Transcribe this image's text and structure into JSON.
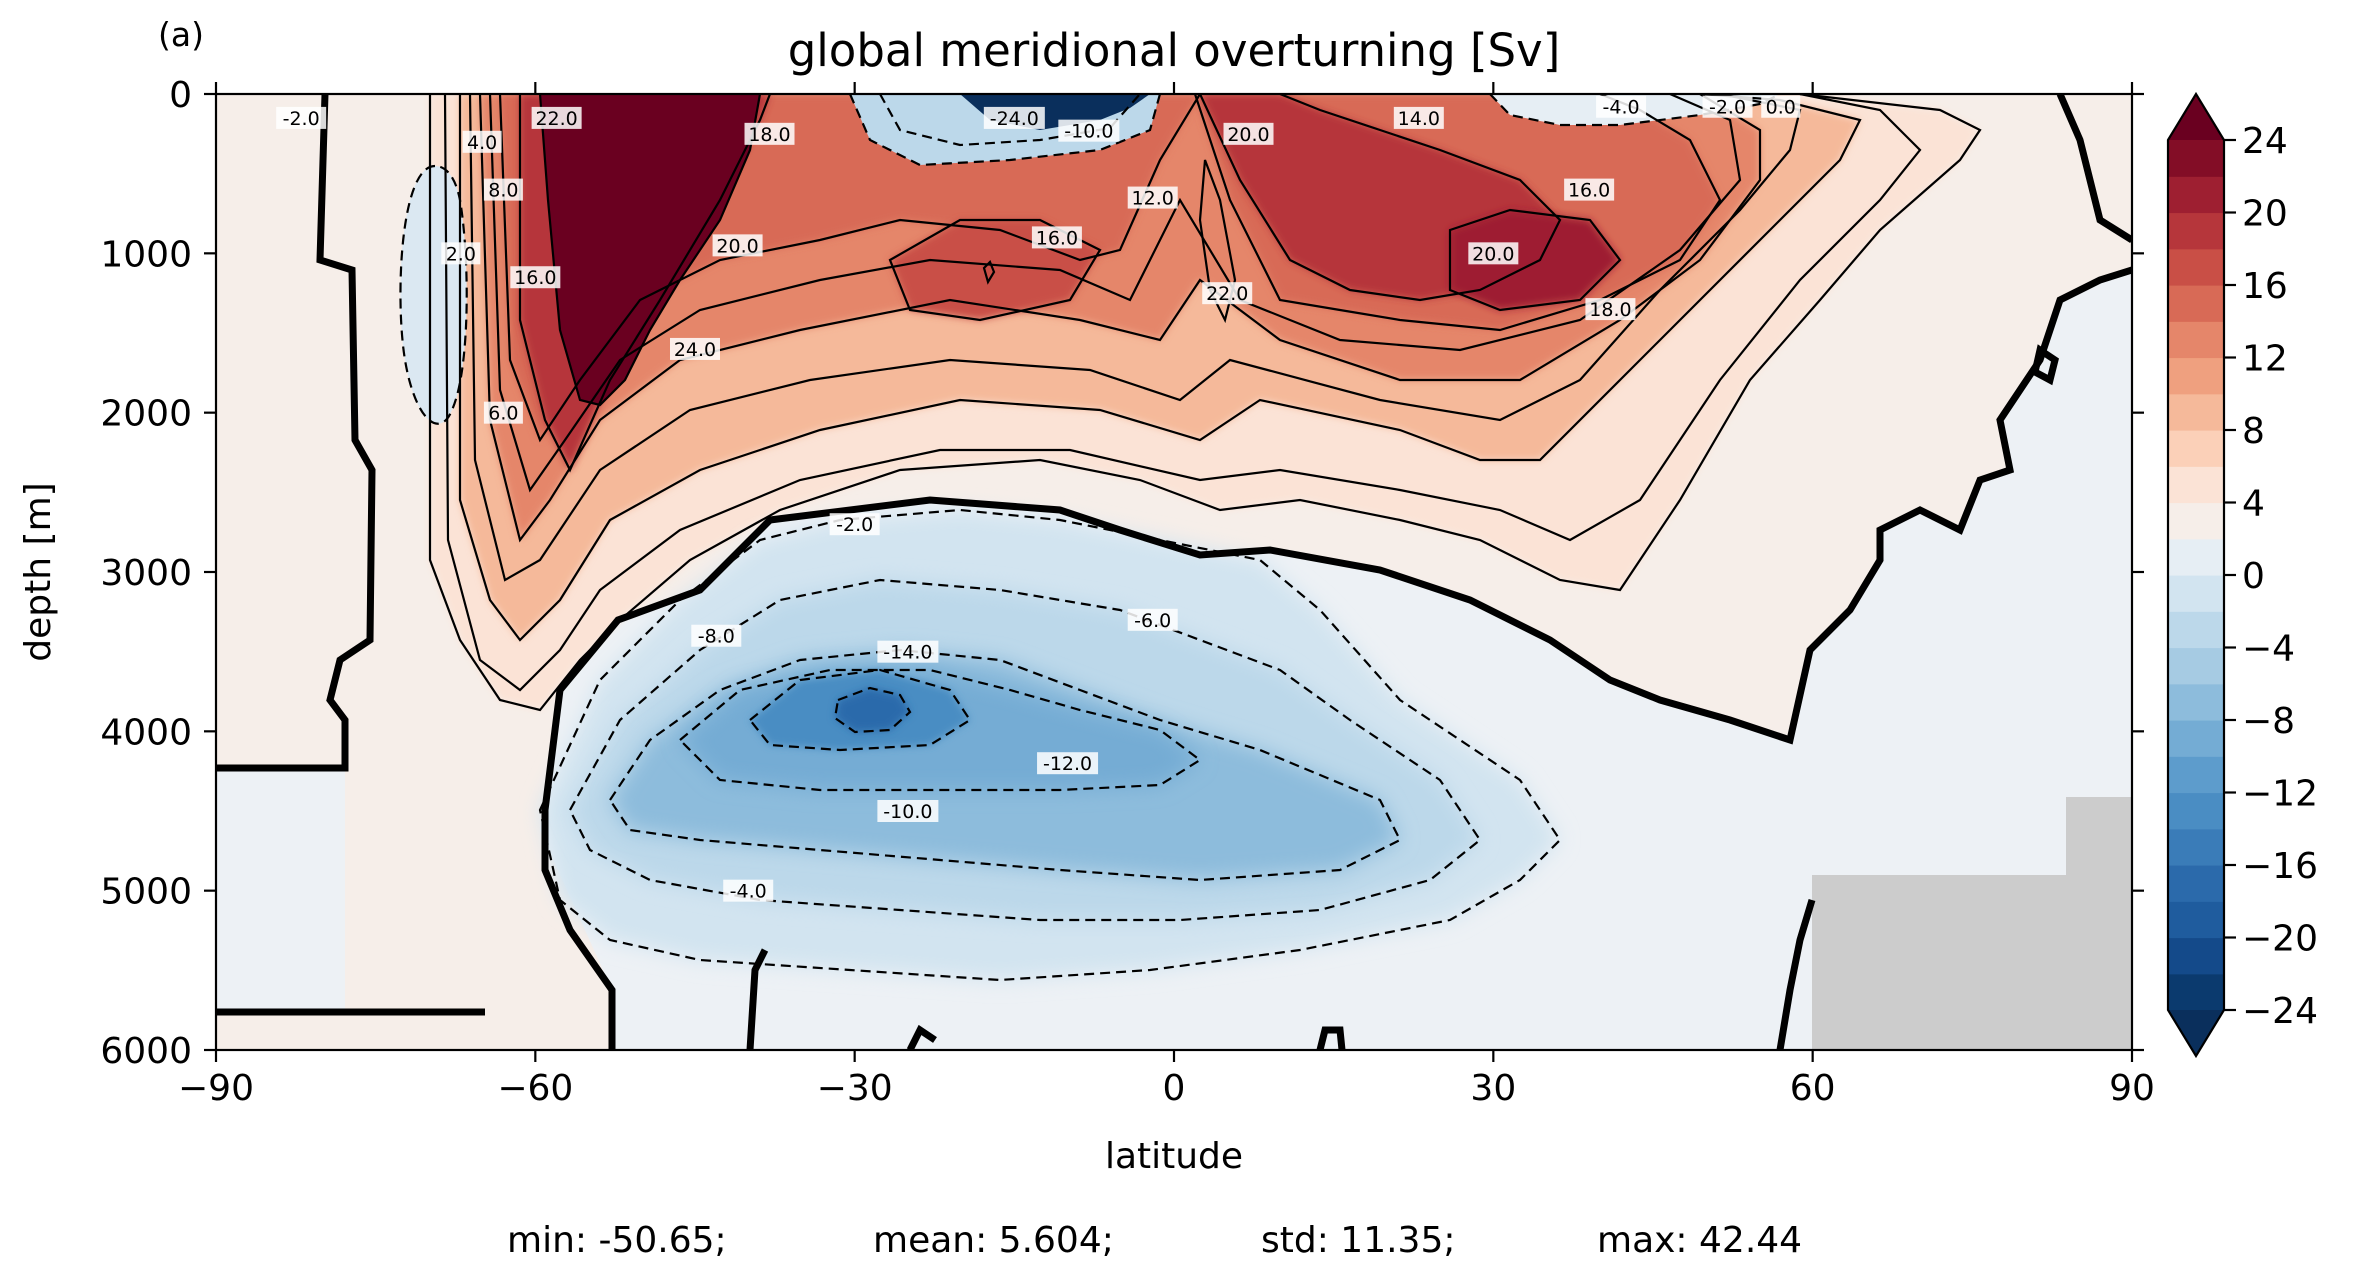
{
  "panel_label": "(a)",
  "chart_data": {
    "type": "contourf",
    "title": "global meridional overturning [Sv]",
    "xlabel": "latitude",
    "ylabel": "depth [m]",
    "xlim": [
      -90,
      90
    ],
    "ylim": [
      6000,
      0
    ],
    "y_inverted": true,
    "x_ticks": [
      -90,
      -60,
      -30,
      0,
      30,
      60,
      90
    ],
    "x_tick_labels": [
      "−90",
      "−60",
      "−30",
      "0",
      "30",
      "60",
      "90"
    ],
    "y_ticks": [
      0,
      1000,
      2000,
      3000,
      4000,
      5000,
      6000
    ],
    "y_tick_labels": [
      "0",
      "1000",
      "2000",
      "3000",
      "4000",
      "5000",
      "6000"
    ],
    "colormap": "RdBu_r",
    "colorbar": {
      "levels": [
        -24,
        -22,
        -20,
        -18,
        -16,
        -14,
        -12,
        -10,
        -8,
        -6,
        -4,
        -2,
        0,
        2,
        4,
        6,
        8,
        10,
        12,
        14,
        16,
        18,
        20,
        22,
        24
      ],
      "ticks": [
        -24,
        -20,
        -16,
        -12,
        -8,
        -4,
        0,
        4,
        8,
        12,
        16,
        20,
        24
      ],
      "tick_labels": [
        "−24",
        "−20",
        "−16",
        "−12",
        "−8",
        "−4",
        "0",
        "4",
        "8",
        "12",
        "16",
        "20",
        "24"
      ],
      "extend": "both",
      "colors": [
        "#0b3a6e",
        "#144a8a",
        "#1f5c9e",
        "#2b6aab",
        "#3a7cb8",
        "#4a8dc3",
        "#5d9ccc",
        "#74acd4",
        "#8dbcdc",
        "#a6cbe3",
        "#bcd8ea",
        "#d2e4f0",
        "#e6eef4",
        "#f6eee9",
        "#fbe3d6",
        "#fbd0b8",
        "#f5b99a",
        "#efa07f",
        "#e5866a",
        "#d86a56",
        "#c94f46",
        "#b6363b",
        "#9e1f31",
        "#830d26"
      ],
      "over_color": "#6a0020",
      "under_color": "#0a2f5c"
    },
    "land_mask_color": "#cccccc",
    "contour_labels": [
      {
        "value": -2,
        "text": "-2.0",
        "lat": -30,
        "depth": 2700
      },
      {
        "value": -6,
        "text": "-6.0",
        "lat": -2,
        "depth": 3300
      },
      {
        "value": -8,
        "text": "-8.0",
        "lat": -43,
        "depth": 3400
      },
      {
        "value": -14,
        "text": "-14.0",
        "lat": -25,
        "depth": 3500
      },
      {
        "value": -12,
        "text": "-12.0",
        "lat": -10,
        "depth": 4200
      },
      {
        "value": -10,
        "text": "-10.0",
        "lat": -25,
        "depth": 4500
      },
      {
        "value": -4,
        "text": "-4.0",
        "lat": -40,
        "depth": 5000
      },
      {
        "value": -2,
        "text": "-2.0",
        "lat": -82,
        "depth": 150
      },
      {
        "value": 4,
        "text": "4.0",
        "lat": -65,
        "depth": 300
      },
      {
        "value": 8,
        "text": "8.0",
        "lat": -63,
        "depth": 600
      },
      {
        "value": 2,
        "text": "2.0",
        "lat": -67,
        "depth": 1000
      },
      {
        "value": 16,
        "text": "16.0",
        "lat": -60,
        "depth": 1150
      },
      {
        "value": 6,
        "text": "6.0",
        "lat": -63,
        "depth": 2000
      },
      {
        "value": 22,
        "text": "22.0",
        "lat": -58,
        "depth": 150
      },
      {
        "value": 18,
        "text": "18.0",
        "lat": -38,
        "depth": 250
      },
      {
        "value": 20,
        "text": "20.0",
        "lat": -41,
        "depth": 950
      },
      {
        "value": 24,
        "text": "24.0",
        "lat": -45,
        "depth": 1600
      },
      {
        "value": 16,
        "text": "16.0",
        "lat": -11,
        "depth": 900
      },
      {
        "value": 12,
        "text": "12.0",
        "lat": -2,
        "depth": 650
      },
      {
        "value": 20,
        "text": "20.0",
        "lat": 7,
        "depth": 250
      },
      {
        "value": 22,
        "text": "22.0",
        "lat": 5,
        "depth": 1250
      },
      {
        "value": 14,
        "text": "14.0",
        "lat": 23,
        "depth": 150
      },
      {
        "value": 16,
        "text": "16.0",
        "lat": 39,
        "depth": 600
      },
      {
        "value": 20,
        "text": "20.0",
        "lat": 30,
        "depth": 1000
      },
      {
        "value": 18,
        "text": "18.0",
        "lat": 41,
        "depth": 1350
      },
      {
        "value": -24,
        "text": "-24.0",
        "lat": -15,
        "depth": 150
      },
      {
        "value": -10,
        "text": "-10.0",
        "lat": -8,
        "depth": 230
      },
      {
        "value": -4,
        "text": "-4.0",
        "lat": 42,
        "depth": 80
      },
      {
        "value": -2,
        "text": "-2.0",
        "lat": 52,
        "depth": 80
      },
      {
        "value": 0,
        "text": "0.0",
        "lat": 57,
        "depth": 80
      }
    ]
  },
  "stats": {
    "min": "min: -50.65;",
    "mean": "mean: 5.604;",
    "std": "std: 11.35;",
    "max": "max: 42.44"
  }
}
